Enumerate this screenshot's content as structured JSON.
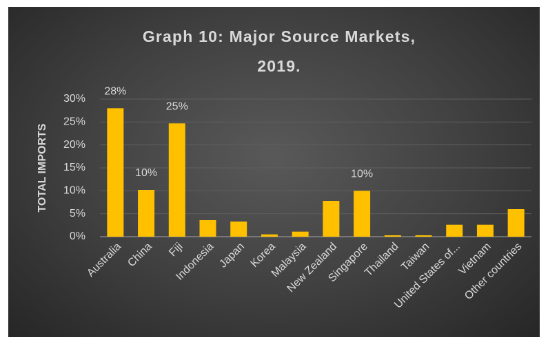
{
  "chart_data": {
    "type": "bar",
    "title": "Graph 10: Major Source Markets, 2019.",
    "y_label": "TOTAL IMPORTS",
    "categories": [
      "Australia",
      "China",
      "Fiji",
      "Indonesia",
      "Japan",
      "Korea",
      "Malaysia",
      "New Zealand",
      "Singapore",
      "Thailand",
      "Taiwan",
      "United States of...",
      "Vietnam",
      "Other countries"
    ],
    "values": [
      28,
      10.2,
      24.7,
      3.6,
      3.3,
      0.5,
      1.1,
      7.8,
      10,
      0.3,
      0.3,
      2.6,
      2.6,
      6.0
    ],
    "value_labels": [
      "28%",
      "10%",
      "25%",
      null,
      null,
      null,
      null,
      null,
      "10%",
      null,
      null,
      null,
      null,
      null
    ],
    "color": "#ffc000",
    "ylim": [
      0,
      30
    ],
    "yticks": [
      {
        "value": 0,
        "label": "0%"
      },
      {
        "value": 5,
        "label": "5%"
      },
      {
        "value": 10,
        "label": "10%"
      },
      {
        "value": 15,
        "label": "15%"
      },
      {
        "value": 20,
        "label": "20%"
      },
      {
        "value": 25,
        "label": "25%"
      },
      {
        "value": 30,
        "label": "30%"
      }
    ],
    "grid": true
  }
}
